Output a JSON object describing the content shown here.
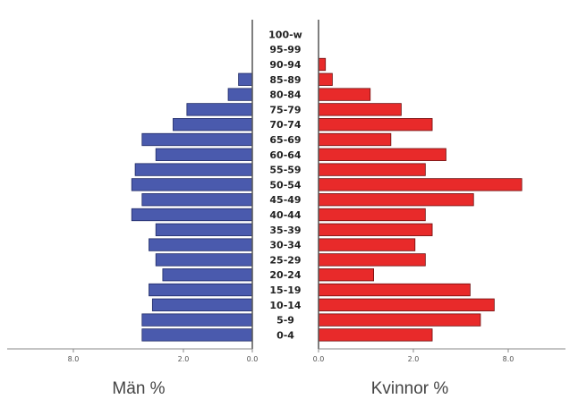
{
  "chart_data": {
    "type": "bar",
    "orientation": "horizontal",
    "layout": "population-pyramid",
    "categories": [
      "0-4",
      "5-9",
      "10-14",
      "15-19",
      "20-24",
      "25-29",
      "30-34",
      "35-39",
      "40-44",
      "45-49",
      "50-54",
      "55-59",
      "60-64",
      "65-69",
      "70-74",
      "75-79",
      "80-84",
      "85-89",
      "90-94",
      "95-99",
      "100-w"
    ],
    "series": [
      {
        "name": "Män %",
        "color": "#4a5aad",
        "values": [
          3.2,
          3.2,
          2.9,
          3.0,
          2.6,
          2.8,
          3.0,
          2.8,
          3.5,
          3.2,
          3.5,
          3.4,
          2.8,
          3.2,
          2.3,
          1.9,
          0.7,
          0.4,
          0.0,
          0.0,
          0.0
        ]
      },
      {
        "name": "Kvinnor %",
        "color": "#e82a2a",
        "values": [
          3.3,
          4.7,
          5.1,
          4.4,
          1.6,
          3.1,
          2.8,
          3.3,
          3.1,
          4.5,
          5.9,
          3.1,
          3.7,
          2.1,
          3.3,
          2.4,
          1.5,
          0.4,
          0.2,
          0.0,
          0.0
        ]
      }
    ],
    "x_ticks_left": [
      "8.0",
      "2.0",
      "0.0"
    ],
    "x_ticks_right": [
      "0.0",
      "2.0",
      "8.0"
    ],
    "xlabel_left": "Män %",
    "xlabel_right": "Kvinnor %",
    "xlim": [
      0,
      6
    ]
  }
}
